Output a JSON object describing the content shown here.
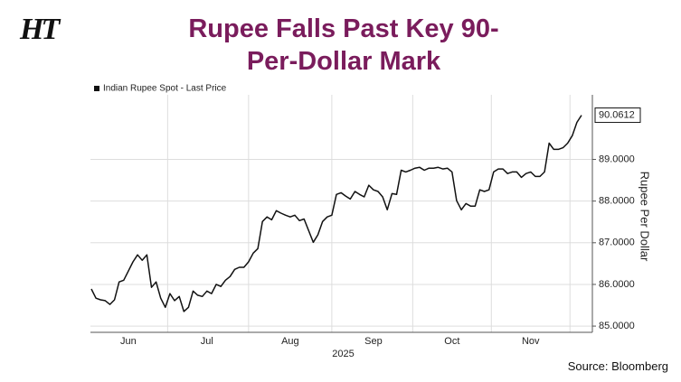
{
  "logo": "HT",
  "source": "Source: Bloomberg",
  "chart_data": {
    "type": "line",
    "title": "Rupee Falls Past Key 90-Per-Dollar Mark",
    "x_label": "2025",
    "y_label": "Rupee Per Dollar",
    "categories": [
      null,
      null,
      null,
      null,
      null,
      null,
      null,
      null,
      "Jun",
      null,
      null,
      null,
      null,
      null,
      null,
      null,
      null,
      null,
      null,
      null,
      null,
      null,
      null,
      null,
      null,
      "Jul",
      null,
      null,
      null,
      null,
      null,
      null,
      null,
      null,
      null,
      null,
      null,
      null,
      null,
      null,
      null,
      null,
      null,
      "Aug",
      null,
      null,
      null,
      null,
      null,
      null,
      null,
      null,
      null,
      null,
      null,
      null,
      null,
      null,
      null,
      null,
      null,
      "Sep",
      null,
      null,
      null,
      null,
      null,
      null,
      null,
      null,
      null,
      null,
      null,
      null,
      null,
      null,
      null,
      null,
      "Oct",
      null,
      null,
      null,
      null,
      null,
      null,
      null,
      null,
      null,
      null,
      null,
      null,
      null,
      null,
      null,
      null,
      "Nov",
      null,
      null,
      null,
      null,
      null,
      null,
      null,
      null,
      null,
      null,
      null
    ],
    "series": [
      {
        "name": "Indian Rupee Spot - Last Price",
        "color": "#111111",
        "values": [
          85.89,
          85.67,
          85.63,
          85.61,
          85.52,
          85.63,
          86.06,
          86.1,
          86.32,
          86.54,
          86.71,
          86.58,
          86.71,
          85.93,
          86.06,
          85.67,
          85.45,
          85.78,
          85.61,
          85.71,
          85.35,
          85.45,
          85.84,
          85.74,
          85.71,
          85.84,
          85.78,
          86.0,
          85.95,
          86.1,
          86.19,
          86.36,
          86.41,
          86.41,
          86.54,
          86.75,
          86.86,
          87.51,
          87.62,
          87.55,
          87.77,
          87.71,
          87.66,
          87.62,
          87.66,
          87.53,
          87.57,
          87.29,
          87.01,
          87.19,
          87.51,
          87.62,
          87.66,
          88.16,
          88.2,
          88.12,
          88.05,
          88.23,
          88.16,
          88.1,
          88.38,
          88.27,
          88.23,
          88.1,
          87.79,
          88.18,
          88.16,
          88.74,
          88.7,
          88.74,
          88.79,
          88.81,
          88.74,
          88.79,
          88.79,
          88.81,
          88.77,
          88.79,
          88.7,
          88.01,
          87.79,
          87.94,
          87.88,
          87.88,
          88.27,
          88.23,
          88.27,
          88.7,
          88.77,
          88.77,
          88.66,
          88.7,
          88.7,
          88.57,
          88.66,
          88.7,
          88.59,
          88.59,
          88.7,
          89.39,
          89.24,
          89.24,
          89.28,
          89.39,
          89.57,
          89.89,
          90.0612
        ]
      }
    ],
    "ylim": [
      84.85,
      90.55
    ],
    "yticks": [
      {
        "value": 85,
        "label": "85.0000"
      },
      {
        "value": 86,
        "label": "86.0000"
      },
      {
        "value": 87,
        "label": "87.0000"
      },
      {
        "value": 88,
        "label": "88.0000"
      },
      {
        "value": 89,
        "label": "89.0000"
      }
    ],
    "grid": true
  }
}
